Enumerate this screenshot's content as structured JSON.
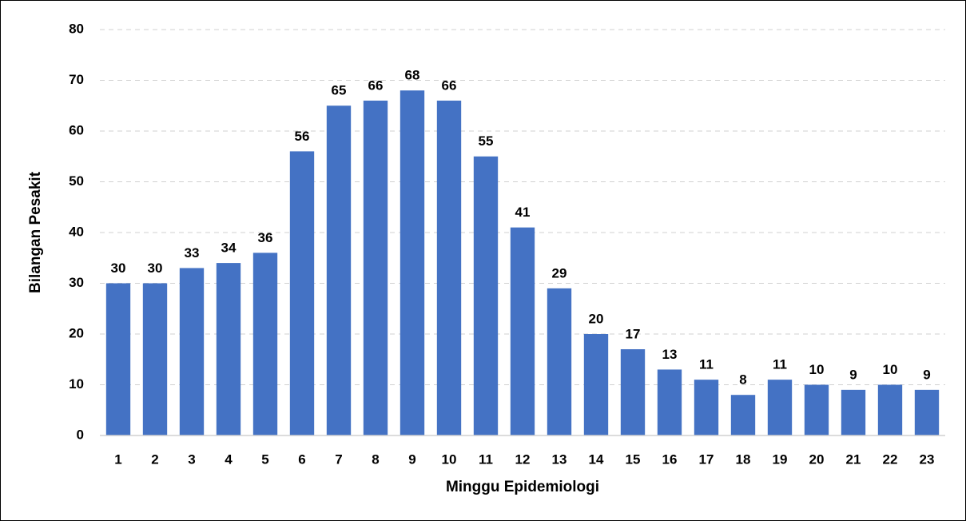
{
  "chart_data": {
    "type": "bar",
    "x_label": "Minggu Epidemiologi",
    "y_label": "Bilangan  Pesakit",
    "categories": [
      "1",
      "2",
      "3",
      "4",
      "5",
      "6",
      "7",
      "8",
      "9",
      "10",
      "11",
      "12",
      "13",
      "14",
      "15",
      "16",
      "17",
      "18",
      "19",
      "20",
      "21",
      "22",
      "23"
    ],
    "values": [
      30,
      30,
      33,
      34,
      36,
      56,
      65,
      66,
      68,
      66,
      55,
      41,
      29,
      20,
      17,
      13,
      11,
      8,
      11,
      10,
      9,
      10,
      9
    ],
    "color": "#4472c4",
    "ylim": [
      0,
      80
    ],
    "yticks": [
      0,
      10,
      20,
      30,
      40,
      50,
      60,
      70,
      80
    ],
    "grid": true
  }
}
